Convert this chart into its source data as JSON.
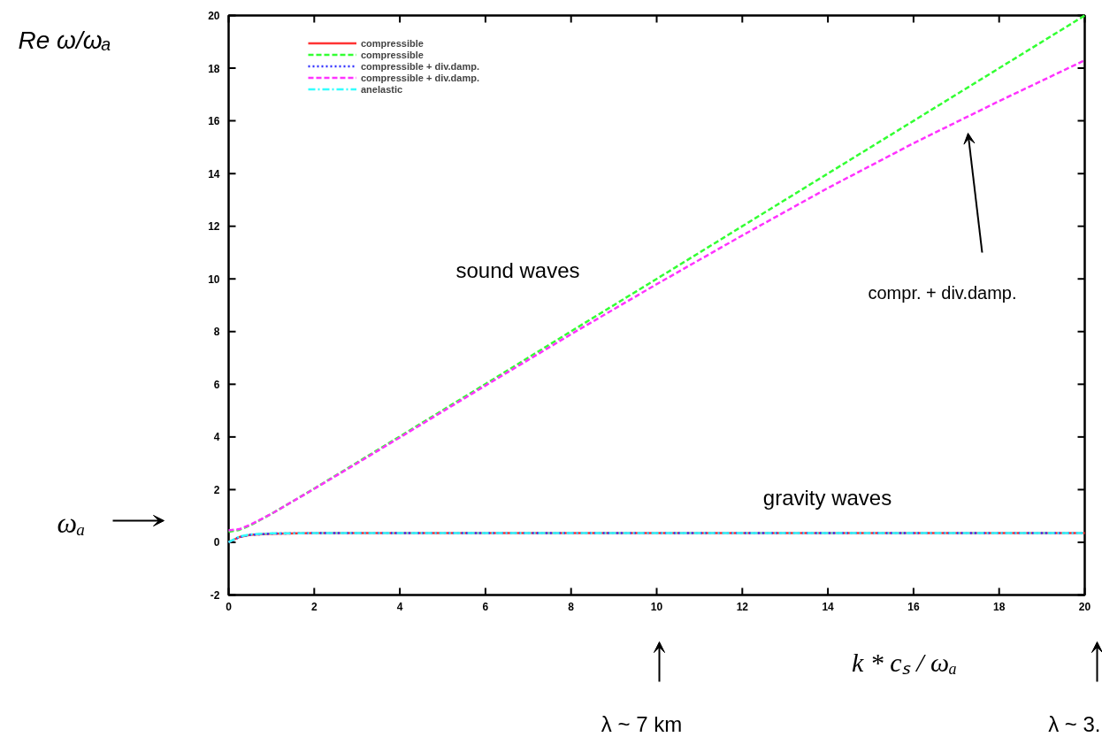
{
  "chart_data": {
    "type": "line",
    "xlabel": "k * cₛ / ωₐ",
    "ylabel": "Re ω/ωₐ",
    "x": [
      0,
      0.25,
      0.5,
      1,
      2,
      3,
      4,
      6,
      8,
      10,
      12,
      14,
      16,
      17,
      18,
      20
    ],
    "series": [
      {
        "name": "compressible",
        "color": "#ff3333",
        "line_style": "solid",
        "values": [
          0,
          0.2,
          0.28,
          0.33,
          0.35,
          0.35,
          0.35,
          0.35,
          0.35,
          0.35,
          0.35,
          0.35,
          0.35,
          0.35,
          0.35,
          0.35
        ]
      },
      {
        "name": "compressible",
        "color": "#33ff33",
        "line_style": "dashed",
        "values": [
          0.4,
          0.47,
          0.64,
          1.08,
          2.04,
          3.03,
          4.02,
          6.01,
          8.01,
          10.0,
          12.0,
          14.0,
          16.0,
          17.0,
          18.0,
          20.0
        ]
      },
      {
        "name": "compressible + div.damp.",
        "color": "#3333ff",
        "line_style": "dotted",
        "values": [
          0,
          0.2,
          0.28,
          0.33,
          0.35,
          0.35,
          0.35,
          0.35,
          0.35,
          0.35,
          0.35,
          0.35,
          0.35,
          0.35,
          0.35,
          0.35
        ]
      },
      {
        "name": "compressible + div.damp.",
        "color": "#ff33ff",
        "line_style": "dashed",
        "values": [
          0.45,
          0.5,
          0.66,
          1.08,
          2.03,
          3.0,
          3.98,
          5.95,
          7.9,
          9.8,
          11.65,
          13.45,
          15.15,
          15.95,
          16.75,
          18.3
        ]
      },
      {
        "name": "anelastic",
        "color": "#33ffff",
        "line_style": "dashdot",
        "values": [
          0,
          0.22,
          0.3,
          0.34,
          0.35,
          0.35,
          0.35,
          0.35,
          0.35,
          0.35,
          0.35,
          0.35,
          0.35,
          0.35,
          0.35,
          0.35
        ]
      }
    ],
    "xlim": [
      0,
      20
    ],
    "ylim": [
      -2,
      20
    ],
    "xticks": [
      0,
      2,
      4,
      6,
      8,
      10,
      12,
      14,
      16,
      18,
      20
    ],
    "yticks": [
      -2,
      0,
      2,
      4,
      6,
      8,
      10,
      12,
      14,
      16,
      18,
      20
    ],
    "grid": false,
    "legend": "top",
    "marker": "none",
    "annotations": [
      "sound waves",
      "gravity waves",
      "compr. + div.damp.",
      "ωₐ",
      "λ ~ 7 km",
      "λ ~ 3."
    ]
  }
}
